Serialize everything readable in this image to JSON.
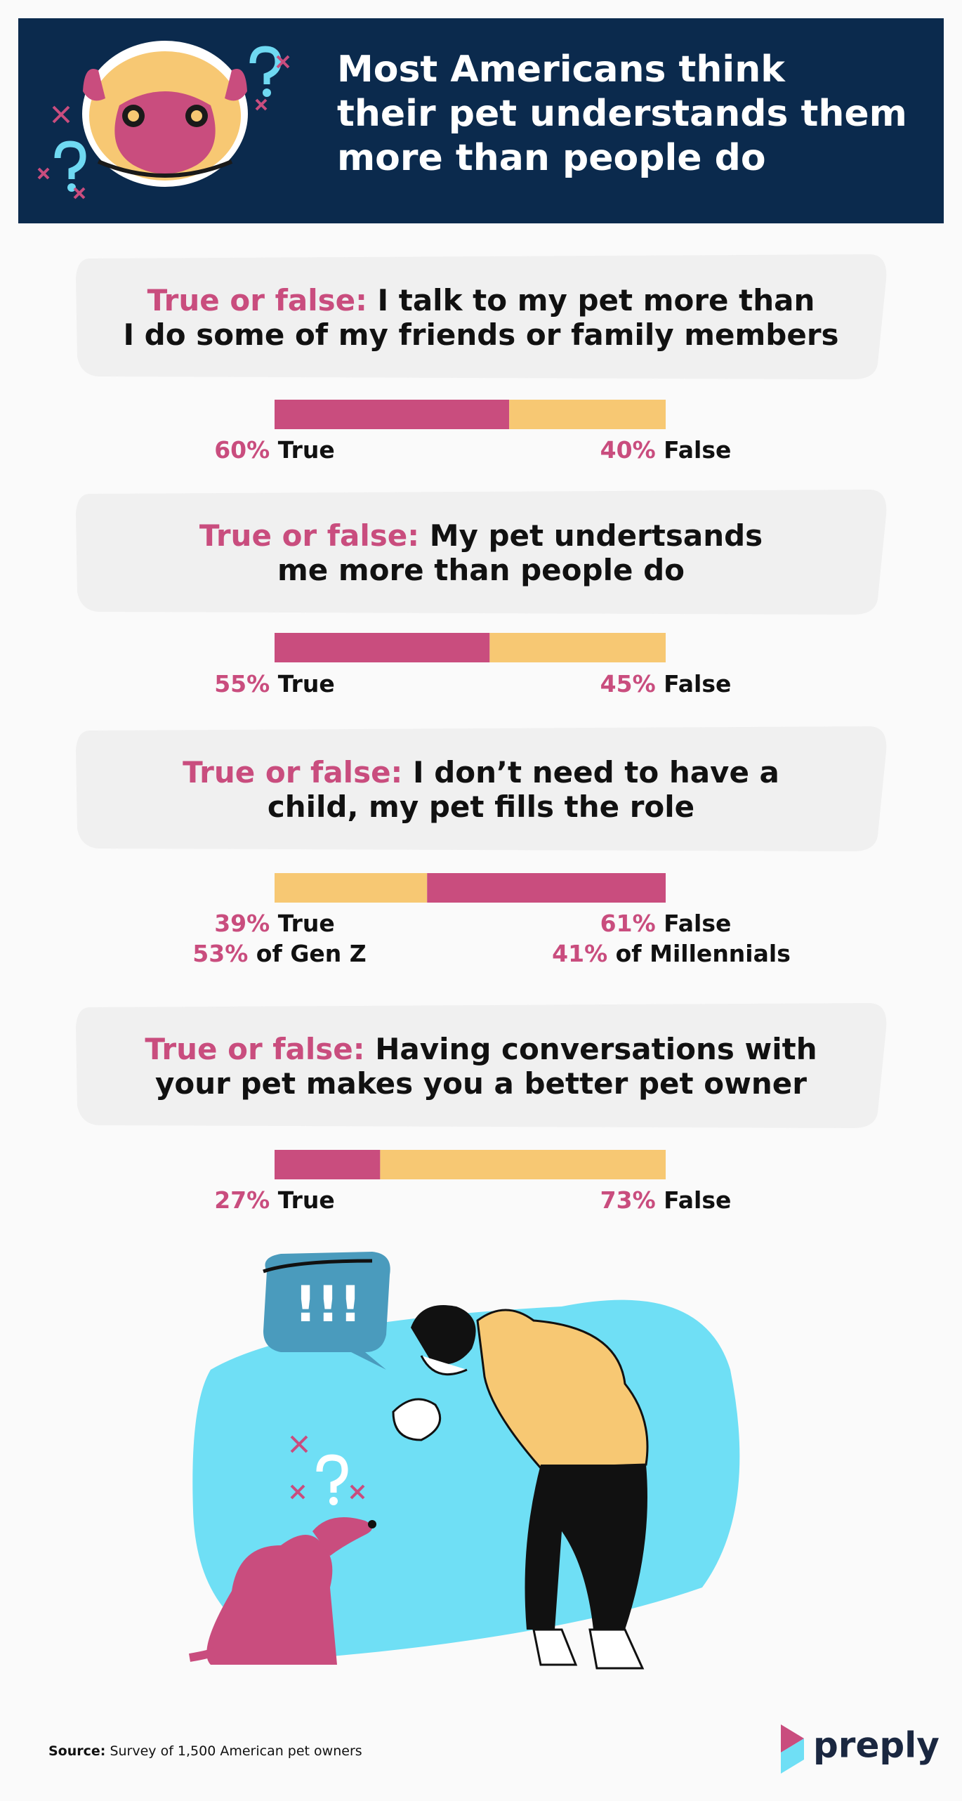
{
  "header": {
    "title_lines": [
      "Most Americans think",
      "their pet understands them",
      "more than people do"
    ]
  },
  "questions": [
    {
      "prefix": "True or false:",
      "lines": [
        "I talk to my pet more than",
        "I do some of my friends or family members"
      ],
      "segments": [
        {
          "name": "True",
          "value": 60,
          "label": "60%",
          "color": "#c94d7e"
        },
        {
          "name": "False",
          "value": 40,
          "label": "40%",
          "color": "#f7c873"
        }
      ]
    },
    {
      "prefix": "True or false:",
      "lines": [
        "My pet undertsands",
        "me more than people do"
      ],
      "segments": [
        {
          "name": "True",
          "value": 55,
          "label": "55%",
          "color": "#c94d7e"
        },
        {
          "name": "False",
          "value": 45,
          "label": "45%",
          "color": "#f7c873"
        }
      ]
    },
    {
      "prefix": "True or false:",
      "lines": [
        "I don’t need to have a",
        "child, my pet fills the role"
      ],
      "segments": [
        {
          "name": "True",
          "value": 39,
          "label": "39%",
          "color": "#f7c873"
        },
        {
          "name": "False",
          "value": 61,
          "label": "61%",
          "color": "#c94d7e"
        }
      ],
      "notes": [
        {
          "label": "53%",
          "text": "of Gen Z"
        },
        {
          "label": "41%",
          "text": "of Millennials"
        }
      ]
    },
    {
      "prefix": "True or false:",
      "lines": [
        "Having conversations with",
        "your pet makes you a better pet owner"
      ],
      "segments": [
        {
          "name": "True",
          "value": 27,
          "label": "27%",
          "color": "#c94d7e"
        },
        {
          "name": "False",
          "value": 73,
          "label": "73%",
          "color": "#f7c873"
        }
      ]
    }
  ],
  "illustration": {
    "bubble_text": "!!!"
  },
  "footer": {
    "source_label": "Source:",
    "source_text": "Survey of 1,500 American pet owners",
    "brand": "preply"
  }
}
